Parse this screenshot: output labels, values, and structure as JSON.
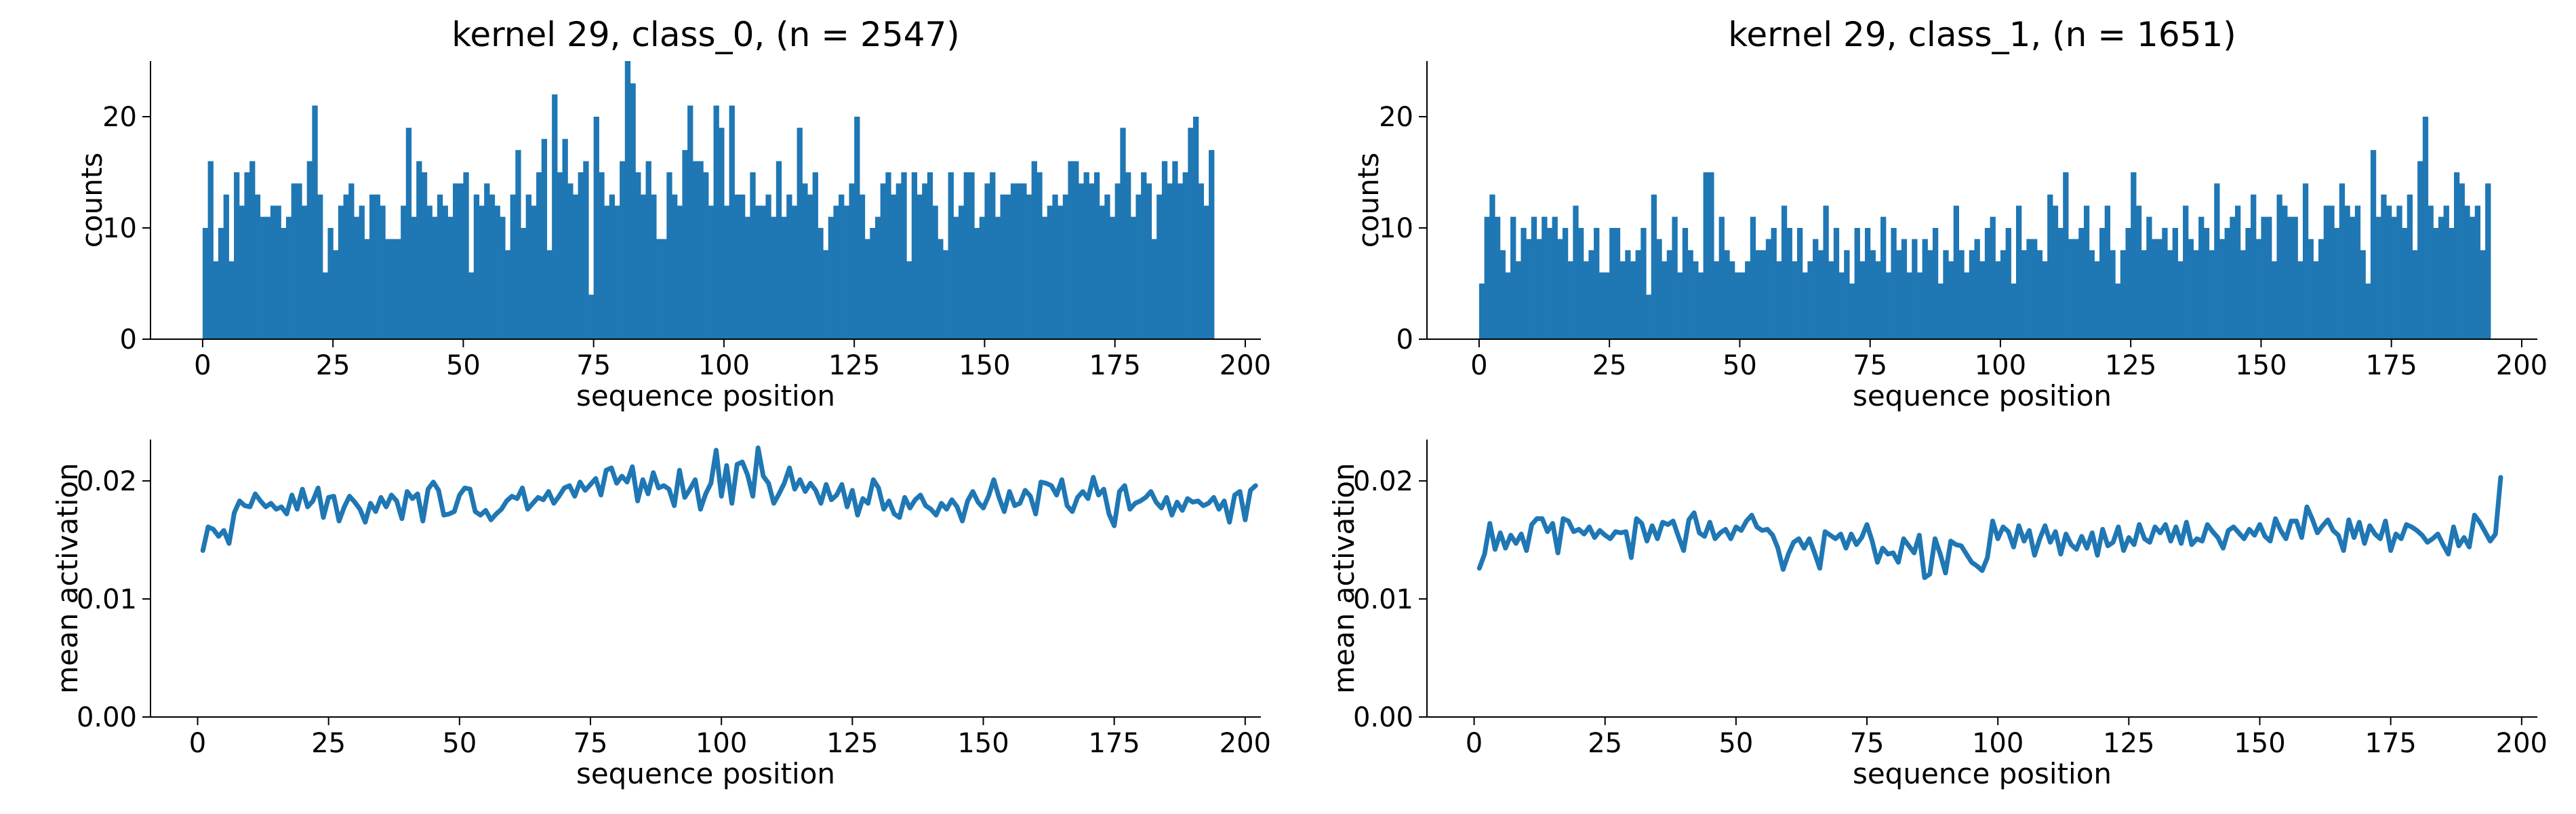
{
  "chart_data": [
    {
      "type": "bar",
      "panel": "top-left",
      "title": "kernel 29, class_0, (n = 2547)",
      "xlabel": "sequence position",
      "ylabel": "counts",
      "xlim": [
        -10,
        203
      ],
      "ylim": [
        0,
        25
      ],
      "xticks": [
        0,
        25,
        50,
        75,
        100,
        125,
        150,
        175,
        200
      ],
      "yticks": [
        0,
        10,
        20
      ],
      "color": "#1f77b4",
      "bin_start": 0,
      "bin_width": 1,
      "values": [
        10,
        16,
        7,
        10,
        13,
        7,
        15,
        12,
        15,
        16,
        13,
        11,
        11,
        12,
        12,
        10,
        11,
        14,
        14,
        12,
        16,
        21,
        13,
        6,
        10,
        8,
        12,
        13,
        14,
        11,
        12,
        9,
        13,
        13,
        12,
        9,
        9,
        9,
        12,
        19,
        11,
        16,
        15,
        12,
        11,
        13,
        12,
        11,
        14,
        14,
        15,
        6,
        13,
        12,
        14,
        13,
        12,
        11,
        8,
        13,
        17,
        10,
        13,
        12,
        15,
        18,
        8,
        22,
        15,
        18,
        14,
        13,
        15,
        16,
        4,
        20,
        15,
        12,
        13,
        12,
        16,
        25,
        23,
        15,
        13,
        16,
        13,
        9,
        9,
        15,
        13,
        12,
        17,
        21,
        16,
        16,
        15,
        12,
        21,
        19,
        12,
        21,
        13,
        13,
        11,
        15,
        12,
        12,
        13,
        11,
        16,
        11,
        13,
        12,
        19,
        14,
        13,
        15,
        10,
        8,
        11,
        12,
        13,
        12,
        14,
        20,
        13,
        9,
        10,
        11,
        14,
        15,
        13,
        14,
        15,
        7,
        15,
        13,
        14,
        15,
        12,
        9,
        8,
        15,
        11,
        12,
        15,
        15,
        10,
        11,
        14,
        15,
        11,
        13,
        13,
        14,
        14,
        14,
        13,
        16,
        15,
        11,
        12,
        13,
        12,
        13,
        16,
        16,
        14,
        15,
        14,
        15,
        12,
        13,
        11,
        14,
        19,
        15,
        11,
        13,
        15,
        14,
        9,
        13,
        16,
        14,
        16,
        14,
        15,
        19,
        20,
        14,
        12,
        17
      ],
      "_values_note": ""
    },
    {
      "type": "bar",
      "panel": "top-right",
      "title": "kernel 29, class_1, (n = 1651)",
      "xlabel": "sequence position",
      "ylabel": "counts",
      "xlim": [
        -10,
        203
      ],
      "ylim": [
        0,
        25
      ],
      "xticks": [
        0,
        25,
        50,
        75,
        100,
        125,
        150,
        175,
        200
      ],
      "yticks": [
        0,
        10,
        20
      ],
      "color": "#1f77b4",
      "bin_start": 0,
      "bin_width": 1,
      "values": [
        5,
        11,
        13,
        11,
        8,
        6,
        11,
        7,
        10,
        9,
        11,
        9,
        11,
        10,
        11,
        9,
        10,
        7,
        12,
        10,
        7,
        8,
        10,
        6,
        6,
        10,
        10,
        7,
        8,
        7,
        8,
        10,
        4,
        13,
        9,
        7,
        8,
        11,
        6,
        10,
        8,
        7,
        6,
        15,
        15,
        7,
        11,
        8,
        7,
        6,
        6,
        7,
        11,
        8,
        8,
        9,
        10,
        7,
        12,
        10,
        7,
        10,
        6,
        7,
        9,
        8,
        12,
        7,
        10,
        6,
        8,
        5,
        10,
        7,
        10,
        8,
        7,
        11,
        6,
        10,
        8,
        9,
        6,
        9,
        6,
        9,
        8,
        10,
        5,
        8,
        7,
        12,
        8,
        6,
        8,
        9,
        7,
        10,
        11,
        7,
        8,
        10,
        5,
        12,
        8,
        9,
        9,
        8,
        7,
        13,
        12,
        10,
        15,
        9,
        9,
        10,
        12,
        8,
        7,
        10,
        12,
        8,
        5,
        8,
        10,
        15,
        12,
        8,
        11,
        9,
        9,
        10,
        8,
        10,
        7,
        12,
        9,
        8,
        11,
        10,
        8,
        14,
        9,
        10,
        11,
        12,
        8,
        10,
        13,
        9,
        11,
        11,
        7,
        13,
        12,
        11,
        11,
        7,
        14,
        9,
        7,
        9,
        12,
        12,
        10,
        14,
        12,
        11,
        12,
        8,
        5,
        17,
        11,
        13,
        12,
        11,
        12,
        10,
        13,
        8,
        16,
        20,
        12,
        10,
        11,
        12,
        10,
        15,
        14,
        12,
        11,
        12,
        8,
        14
      ],
      "_values_note": ""
    },
    {
      "type": "line",
      "panel": "bottom-left",
      "title": "",
      "xlabel": "sequence position",
      "ylabel": "mean activation",
      "xlim": [
        -9,
        203
      ],
      "ylim": [
        0,
        0.0235
      ],
      "xticks": [
        0,
        25,
        50,
        75,
        100,
        125,
        150,
        175,
        200
      ],
      "yticks": [
        0.0,
        0.01,
        0.02
      ],
      "ytick_labels": [
        "0.00",
        "0.01",
        "0.02"
      ],
      "color": "#1f77b4",
      "x_start": 1,
      "x_step": 1,
      "values": [
        0.0141,
        0.0161,
        0.0159,
        0.0153,
        0.0158,
        0.0147,
        0.0173,
        0.0183,
        0.0179,
        0.0178,
        0.0189,
        0.0183,
        0.0178,
        0.0181,
        0.0176,
        0.0178,
        0.0172,
        0.0188,
        0.0176,
        0.0193,
        0.0178,
        0.0183,
        0.0194,
        0.0169,
        0.0186,
        0.0187,
        0.0166,
        0.0178,
        0.0187,
        0.0182,
        0.0176,
        0.0165,
        0.0181,
        0.0174,
        0.0186,
        0.0178,
        0.0188,
        0.0183,
        0.0168,
        0.0191,
        0.0185,
        0.0189,
        0.0166,
        0.0193,
        0.0199,
        0.0192,
        0.0171,
        0.0172,
        0.0174,
        0.0188,
        0.0194,
        0.0193,
        0.0174,
        0.0171,
        0.0175,
        0.0167,
        0.0172,
        0.0176,
        0.0183,
        0.0187,
        0.0185,
        0.0194,
        0.0176,
        0.0181,
        0.0186,
        0.0184,
        0.0191,
        0.0181,
        0.0187,
        0.0194,
        0.0196,
        0.0187,
        0.0199,
        0.0192,
        0.0197,
        0.0202,
        0.0188,
        0.0209,
        0.0211,
        0.0198,
        0.0204,
        0.0199,
        0.0212,
        0.0183,
        0.0201,
        0.0189,
        0.0207,
        0.0194,
        0.0196,
        0.0193,
        0.0179,
        0.0209,
        0.0186,
        0.0193,
        0.0201,
        0.0176,
        0.0189,
        0.0198,
        0.0226,
        0.0187,
        0.0213,
        0.0181,
        0.0214,
        0.0216,
        0.0205,
        0.0187,
        0.0228,
        0.0204,
        0.0198,
        0.0181,
        0.0189,
        0.0198,
        0.0211,
        0.0193,
        0.0201,
        0.0191,
        0.0198,
        0.0192,
        0.0181,
        0.0197,
        0.0184,
        0.0188,
        0.0197,
        0.0178,
        0.0192,
        0.0171,
        0.0185,
        0.0181,
        0.0201,
        0.0194,
        0.0176,
        0.0183,
        0.0172,
        0.0169,
        0.0186,
        0.0177,
        0.0184,
        0.0188,
        0.0179,
        0.0176,
        0.0171,
        0.0181,
        0.0176,
        0.0184,
        0.0178,
        0.0166,
        0.0183,
        0.0191,
        0.0182,
        0.0177,
        0.0187,
        0.0201,
        0.0186,
        0.0174,
        0.0191,
        0.0179,
        0.0181,
        0.0192,
        0.0187,
        0.0172,
        0.0199,
        0.0198,
        0.0196,
        0.0188,
        0.0201,
        0.0179,
        0.0174,
        0.0186,
        0.0191,
        0.0185,
        0.0203,
        0.0188,
        0.0193,
        0.0172,
        0.0162,
        0.0191,
        0.0196,
        0.0176,
        0.0181,
        0.0183,
        0.0186,
        0.0191,
        0.0182,
        0.0177,
        0.0186,
        0.0171,
        0.0182,
        0.0175,
        0.0185,
        0.0182,
        0.0183,
        0.0179,
        0.0181,
        0.0186,
        0.0176,
        0.0183,
        0.0165,
        0.0188,
        0.0191,
        0.0167,
        0.0192,
        0.0196
      ],
      "_values_note": ""
    },
    {
      "type": "line",
      "panel": "bottom-right",
      "title": "",
      "xlabel": "sequence position",
      "ylabel": "mean activation",
      "xlim": [
        -9,
        203
      ],
      "ylim": [
        0,
        0.0235
      ],
      "xticks": [
        0,
        25,
        50,
        75,
        100,
        125,
        150,
        175,
        200
      ],
      "yticks": [
        0.0,
        0.01,
        0.02
      ],
      "ytick_labels": [
        "0.00",
        "0.01",
        "0.02"
      ],
      "color": "#1f77b4",
      "x_start": 1,
      "x_step": 1,
      "values": [
        0.0126,
        0.0138,
        0.0164,
        0.0142,
        0.0156,
        0.0143,
        0.0154,
        0.0147,
        0.0155,
        0.0141,
        0.0163,
        0.0168,
        0.0168,
        0.0157,
        0.0164,
        0.0139,
        0.0168,
        0.0166,
        0.0157,
        0.0159,
        0.0155,
        0.0161,
        0.0152,
        0.0158,
        0.0154,
        0.0151,
        0.0157,
        0.0156,
        0.0157,
        0.0135,
        0.0168,
        0.0164,
        0.0149,
        0.0162,
        0.0151,
        0.0165,
        0.0163,
        0.0166,
        0.0153,
        0.0141,
        0.0167,
        0.0173,
        0.0156,
        0.0153,
        0.0165,
        0.0151,
        0.0156,
        0.0159,
        0.0151,
        0.0161,
        0.0158,
        0.0166,
        0.0171,
        0.0161,
        0.0158,
        0.0159,
        0.0154,
        0.0143,
        0.0125,
        0.0138,
        0.0148,
        0.0151,
        0.0143,
        0.0151,
        0.0139,
        0.0126,
        0.0157,
        0.0154,
        0.0151,
        0.0155,
        0.0143,
        0.0155,
        0.0146,
        0.0152,
        0.0163,
        0.0149,
        0.0131,
        0.0143,
        0.0138,
        0.0139,
        0.0131,
        0.0151,
        0.0145,
        0.0139,
        0.0154,
        0.0118,
        0.0121,
        0.0151,
        0.0138,
        0.0122,
        0.0149,
        0.0146,
        0.0145,
        0.0138,
        0.0131,
        0.0128,
        0.0124,
        0.0135,
        0.0166,
        0.0151,
        0.0161,
        0.0157,
        0.0144,
        0.0162,
        0.0149,
        0.0158,
        0.0137,
        0.0151,
        0.0162,
        0.0148,
        0.0157,
        0.0138,
        0.0155,
        0.0146,
        0.0142,
        0.0153,
        0.0143,
        0.0156,
        0.0137,
        0.0159,
        0.0145,
        0.0148,
        0.0161,
        0.0141,
        0.0152,
        0.0146,
        0.0163,
        0.0151,
        0.0148,
        0.0161,
        0.0156,
        0.0163,
        0.0149,
        0.0161,
        0.0147,
        0.0165,
        0.0146,
        0.0151,
        0.0149,
        0.0163,
        0.0157,
        0.0152,
        0.0143,
        0.0158,
        0.0161,
        0.0156,
        0.0151,
        0.0159,
        0.0154,
        0.0163,
        0.0153,
        0.0149,
        0.0168,
        0.0158,
        0.0151,
        0.0166,
        0.0166,
        0.0152,
        0.0178,
        0.0168,
        0.0156,
        0.0162,
        0.0167,
        0.0158,
        0.0154,
        0.0141,
        0.0167,
        0.0152,
        0.0165,
        0.0147,
        0.0162,
        0.0155,
        0.0151,
        0.0166,
        0.0141,
        0.0155,
        0.0151,
        0.0163,
        0.0161,
        0.0158,
        0.0154,
        0.0148,
        0.0151,
        0.0155,
        0.0146,
        0.0138,
        0.0161,
        0.0145,
        0.0152,
        0.0144,
        0.0171,
        0.0165,
        0.0157,
        0.0149,
        0.0155,
        0.0203
      ],
      "_values_note": ""
    }
  ]
}
